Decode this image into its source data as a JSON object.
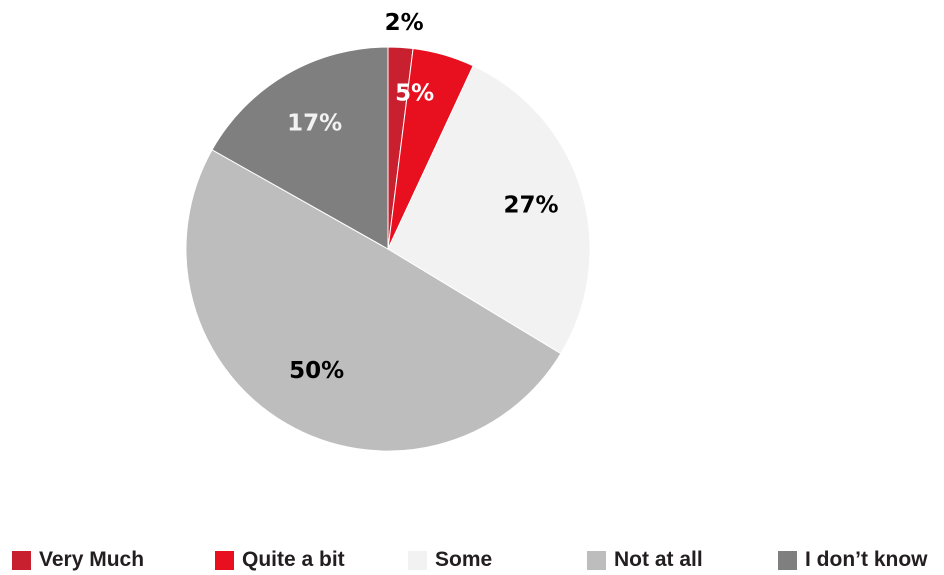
{
  "chart_data": {
    "type": "pie",
    "start": "12 o'clock",
    "direction": "clockwise",
    "slices": [
      {
        "label": "Very Much",
        "value": 2,
        "display": "2%",
        "color": "#c8202f",
        "label_color": "#000000"
      },
      {
        "label": "Quite a bit",
        "value": 5,
        "display": "5%",
        "color": "#e8101f",
        "label_color": "#ffffff"
      },
      {
        "label": "Some",
        "value": 27,
        "display": "27%",
        "color": "#f2f2f2",
        "label_color": "#000000"
      },
      {
        "label": "Not at all",
        "value": 50,
        "display": "50%",
        "color": "#bdbdbd",
        "label_color": "#000000"
      },
      {
        "label": "I don’t know",
        "value": 17,
        "display": "17%",
        "color": "#7f7f7f",
        "label_color": "#f2f2f2"
      }
    ],
    "legend_placement": "bottom"
  }
}
